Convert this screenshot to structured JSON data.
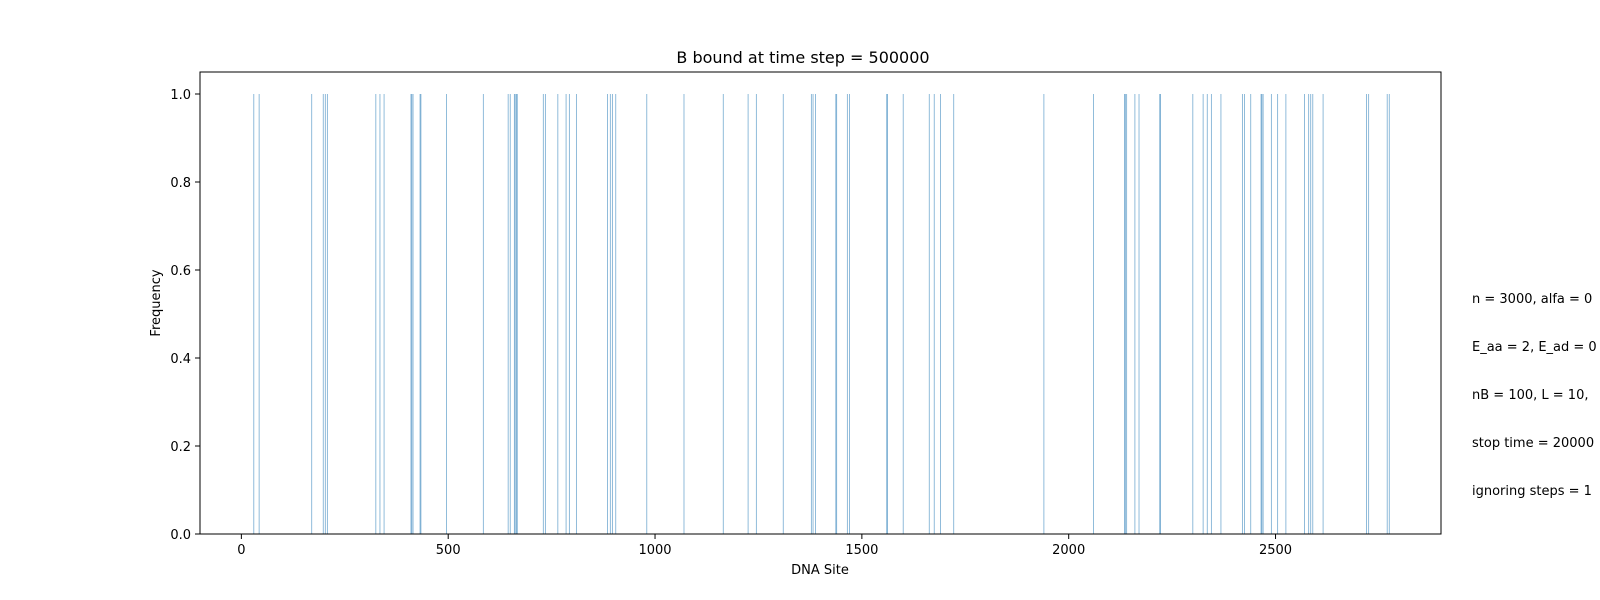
{
  "chart_data": {
    "type": "bar",
    "title": "B bound at time step = 500000",
    "xlabel": "DNA Site",
    "ylabel": "Frequency",
    "xlim": [
      -100,
      2900
    ],
    "ylim": [
      0,
      1.05
    ],
    "xticks": [
      0,
      500,
      1000,
      1500,
      2000,
      2500
    ],
    "yticks": [
      0.0,
      0.2,
      0.4,
      0.6,
      0.8,
      1.0
    ],
    "xtick_labels": [
      "0",
      "500",
      "1000",
      "1500",
      "2000",
      "2500"
    ],
    "ytick_labels": [
      "0.0",
      "0.2",
      "0.4",
      "0.6",
      "0.8",
      "1.0"
    ],
    "bar_color": "#1f77b4",
    "grid": false,
    "x": [
      30,
      43,
      170,
      198,
      203,
      208,
      325,
      335,
      345,
      410,
      412,
      415,
      432,
      434,
      496,
      585,
      645,
      650,
      660,
      662,
      665,
      667,
      730,
      735,
      765,
      785,
      793,
      810,
      885,
      892,
      897,
      905,
      980,
      1070,
      1165,
      1225,
      1245,
      1310,
      1378,
      1382,
      1388,
      1437,
      1439,
      1465,
      1470,
      1560,
      1562,
      1600,
      1663,
      1675,
      1690,
      1722,
      1940,
      2060,
      2135,
      2137,
      2140,
      2160,
      2170,
      2220,
      2222,
      2300,
      2325,
      2335,
      2345,
      2368,
      2420,
      2425,
      2440,
      2465,
      2467,
      2470,
      2490,
      2505,
      2525,
      2570,
      2580,
      2585,
      2590,
      2615,
      2720,
      2725,
      2770,
      2775
    ],
    "values": [
      1,
      1,
      1,
      1,
      1,
      1,
      1,
      1,
      1,
      1,
      1,
      1,
      1,
      1,
      1,
      1,
      1,
      1,
      1,
      1,
      1,
      1,
      1,
      1,
      1,
      1,
      1,
      1,
      1,
      1,
      1,
      1,
      1,
      1,
      1,
      1,
      1,
      1,
      1,
      1,
      1,
      1,
      1,
      1,
      1,
      1,
      1,
      1,
      1,
      1,
      1,
      1,
      1,
      1,
      1,
      1,
      1,
      1,
      1,
      1,
      1,
      1,
      1,
      1,
      1,
      1,
      1,
      1,
      1,
      1,
      1,
      1,
      1,
      1,
      1,
      1,
      1,
      1,
      1,
      1,
      1,
      1,
      1,
      1
    ],
    "side_text": [
      "n = 3000, alfa = 0",
      "E_aa = 2, E_ad = 0",
      "nB = 100, L = 10,",
      "stop time = 20000",
      "ignoring steps = 1"
    ]
  }
}
